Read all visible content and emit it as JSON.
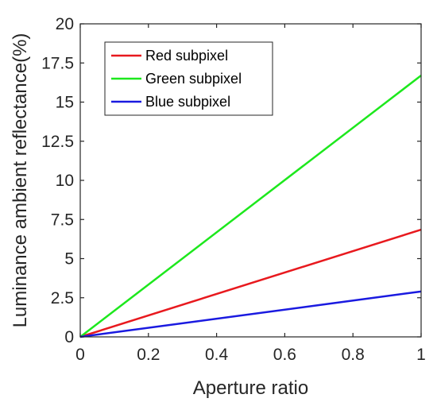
{
  "chart_data": {
    "type": "line",
    "title": "",
    "xlabel": "Aperture ratio",
    "ylabel": "Luminance ambient reflectance(%)",
    "xlim": [
      0,
      1
    ],
    "ylim": [
      0,
      20
    ],
    "xticks": [
      0,
      0.2,
      0.4,
      0.6,
      0.8,
      1
    ],
    "xtick_labels": [
      "0",
      "0.2",
      "0.4",
      "0.6",
      "0.8",
      "1"
    ],
    "yticks": [
      0,
      2.5,
      5,
      7.5,
      10,
      12.5,
      15,
      17.5,
      20
    ],
    "ytick_labels": [
      "0",
      "2.5",
      "5",
      "7.5",
      "10",
      "12.5",
      "15",
      "17.5",
      "20"
    ],
    "grid": false,
    "legend_position": "top-left",
    "series": [
      {
        "name": "Red subpixel",
        "color": "#e8191e",
        "x": [
          0,
          1
        ],
        "y": [
          0,
          6.85
        ]
      },
      {
        "name": "Green subpixel",
        "color": "#1de81d",
        "x": [
          0,
          1
        ],
        "y": [
          0,
          16.7
        ]
      },
      {
        "name": "Blue subpixel",
        "color": "#1a1ae0",
        "x": [
          0,
          1
        ],
        "y": [
          0,
          2.9
        ]
      }
    ]
  }
}
